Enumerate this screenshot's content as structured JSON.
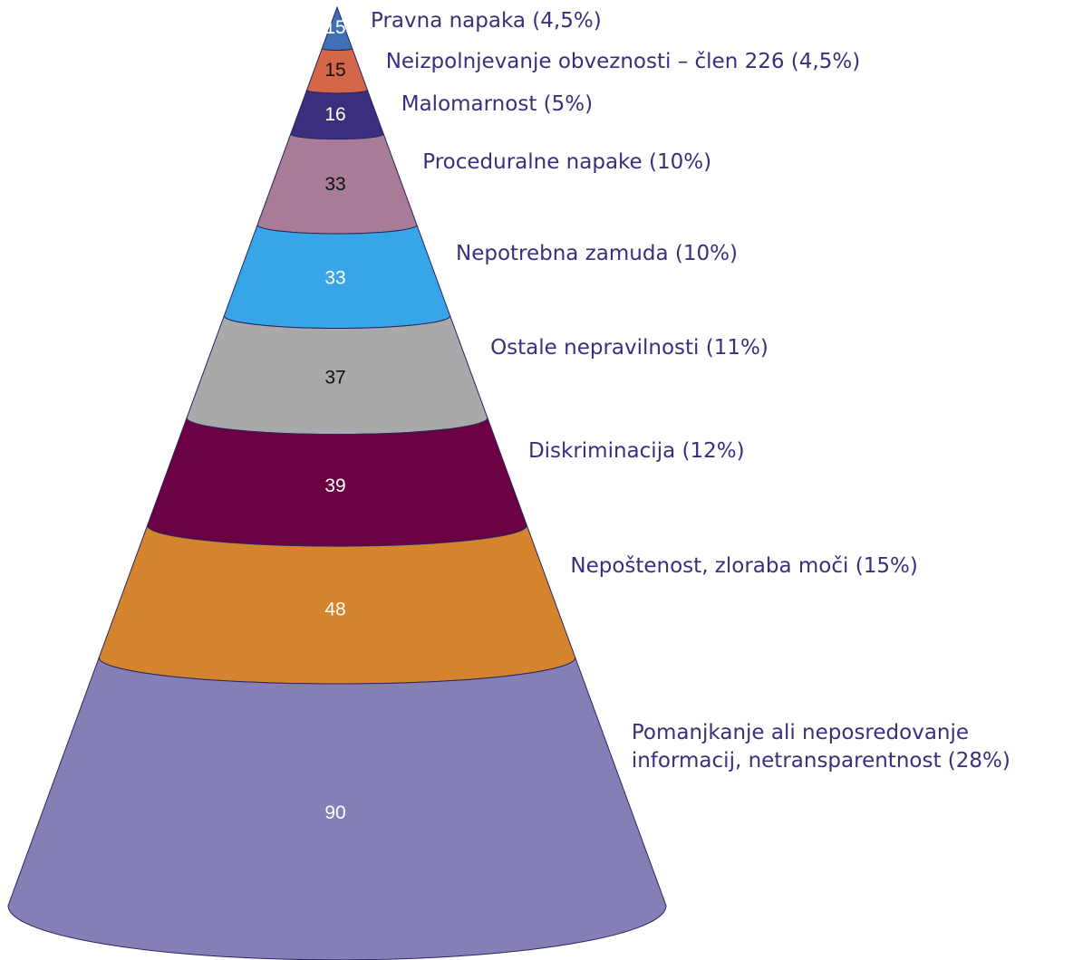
{
  "chart_data": {
    "type": "cone",
    "categories": [
      "Pravna napaka (4,5%)",
      "Neizpolnjevanje obveznosti – člen 226 (4,5%)",
      "Malomarnost (5%)",
      "Proceduralne napake (10%)",
      "Nepotrebna zamuda (10%)",
      "Ostale nepravilnosti (11%)",
      "Diskriminacija (12%)",
      "Nepoštenost, zloraba moči (15%)",
      "Pomanjkanje ali neposredovanje informacij, netransparentnost (28%)"
    ],
    "values": [
      15,
      15,
      16,
      33,
      33,
      37,
      39,
      48,
      90
    ],
    "colors": [
      "#3f6fb5",
      "#d4674a",
      "#3a2f7e",
      "#a87c97",
      "#36a6e8",
      "#a9a9a9",
      "#6b0043",
      "#d4842c",
      "#8480b5"
    ],
    "value_label_colors": [
      "#ffffff",
      "#111111",
      "#ffffff",
      "#111111",
      "#ffffff",
      "#111111",
      "#ffffff",
      "#ffffff",
      "#ffffff"
    ]
  }
}
